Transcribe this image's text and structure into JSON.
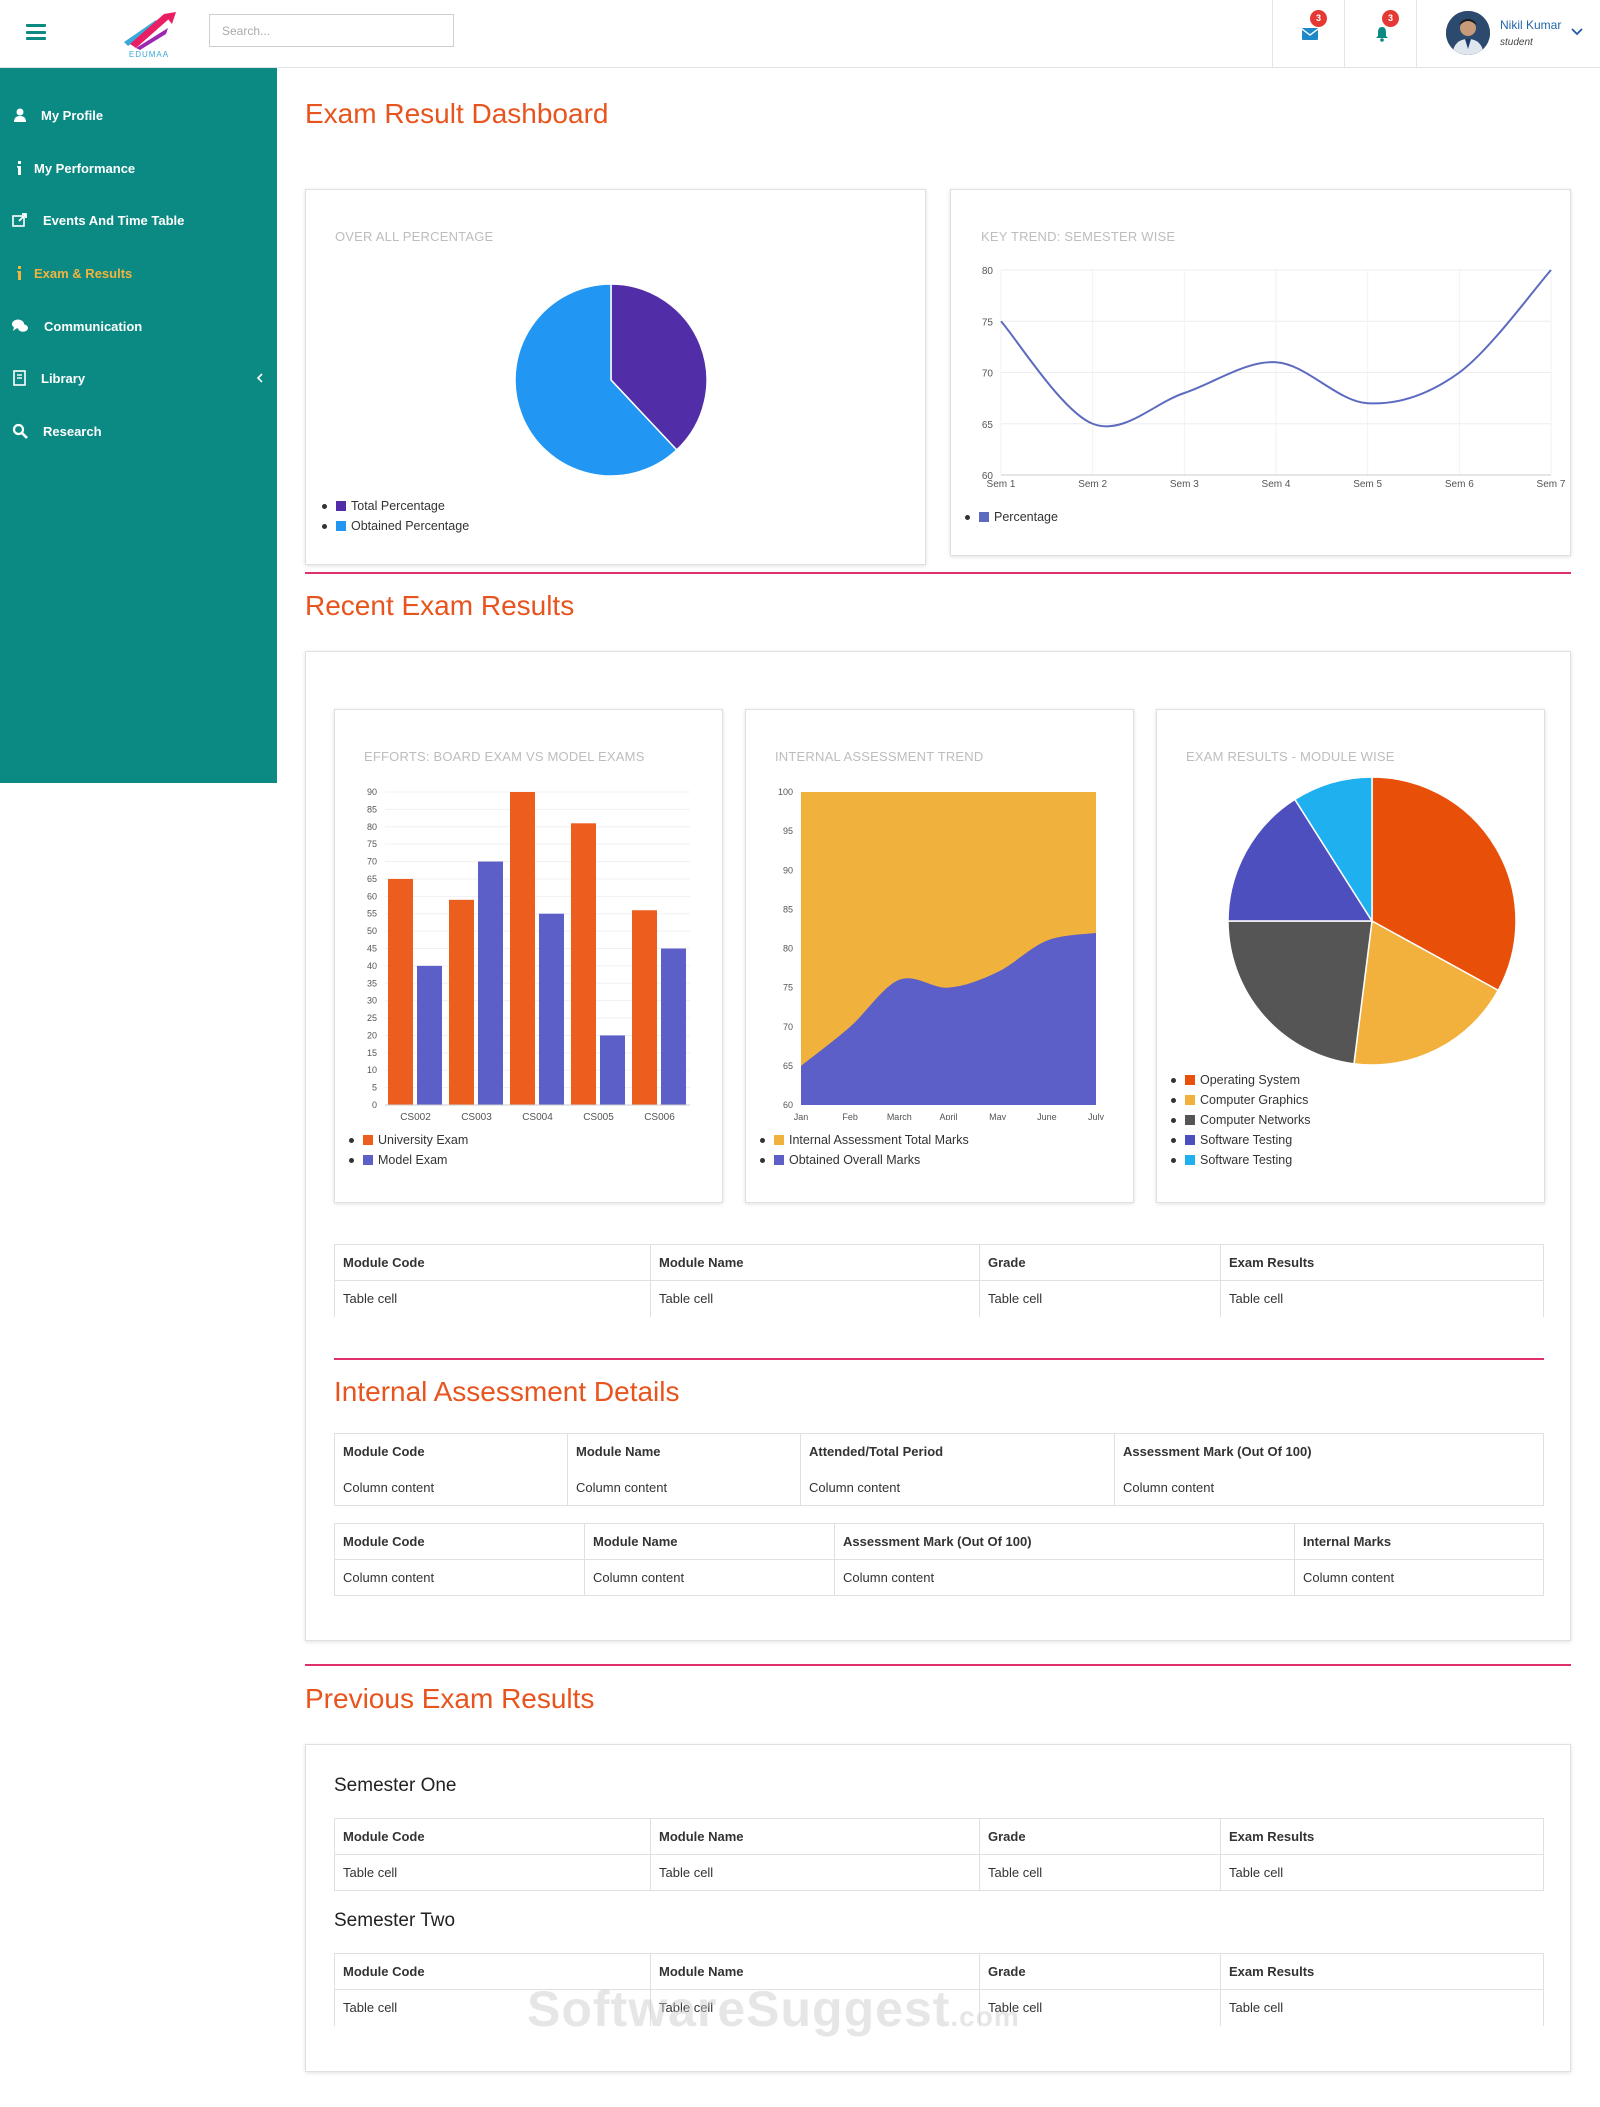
{
  "header": {
    "search_placeholder": "Search...",
    "logo_text": "EDUMAA",
    "mail_badge": "3",
    "notif_badge": "3",
    "user_name": "Nikil Kumar",
    "user_role": "student"
  },
  "sidebar": {
    "items": [
      {
        "label": "My Profile",
        "icon": "user-icon"
      },
      {
        "label": "My Performance",
        "icon": "info-icon"
      },
      {
        "label": "Events And Time Table",
        "icon": "share-icon"
      },
      {
        "label": "Exam & Results",
        "icon": "info-icon",
        "active": true
      },
      {
        "label": "Communication",
        "icon": "chat-icon"
      },
      {
        "label": "Library",
        "icon": "book-icon"
      },
      {
        "label": "Research",
        "icon": "search-icon"
      }
    ]
  },
  "dashboard": {
    "title": "Exam Result Dashboard",
    "overall_title": "OVER ALL PERCENTAGE",
    "trend_title": "KEY TREND: SEMESTER WISE"
  },
  "recent": {
    "title": "Recent Exam Results",
    "efforts_title": "EFFORTS: BOARD EXAM VS MODEL EXAMS",
    "ia_title": "INTERNAL ASSESSMENT TREND",
    "module_title": "EXAM RESULTS - MODULE WISE",
    "table": {
      "headers": [
        "Module Code",
        "Module Name",
        "Grade",
        "Exam Results"
      ],
      "row": [
        "Table cell",
        "Table cell",
        "Table cell",
        "Table cell"
      ]
    }
  },
  "internal": {
    "title": "Internal Assessment Details",
    "table1": {
      "headers": [
        "Module Code",
        "Module Name",
        "Attended/Total Period",
        "Assessment Mark (Out Of 100)"
      ],
      "row": [
        "Column content",
        "Column content",
        "Column content",
        "Column content"
      ]
    },
    "table2": {
      "headers": [
        "Module Code",
        "Module Name",
        "Assessment Mark (Out Of 100)",
        "Internal Marks"
      ],
      "row": [
        "Column content",
        "Column content",
        "Column content",
        "Column content"
      ]
    }
  },
  "previous": {
    "title": "Previous Exam Results",
    "semester_one": "Semester One",
    "semester_two": "Semester Two",
    "table": {
      "headers": [
        "Module Code",
        "Module Name",
        "Grade",
        "Exam Results"
      ],
      "row": [
        "Table cell",
        "Table cell",
        "Table cell",
        "Table cell"
      ]
    }
  },
  "watermark": {
    "main": "SoftwareSuggest",
    "suffix": ".com"
  },
  "colors": {
    "teal": "#0b8a84",
    "accent": "#e8541e",
    "active_nav": "#f3b33d",
    "rule": "#e0306e"
  },
  "chart_data": [
    {
      "type": "pie",
      "labels": [
        "Total Percentage",
        "Obtained Percentage"
      ],
      "values": [
        38,
        62
      ],
      "colors": [
        "#512da8",
        "#2196f3"
      ]
    },
    {
      "type": "line",
      "x": [
        "Sem 1",
        "Sem 2",
        "Sem 3",
        "Sem 4",
        "Sem 5",
        "Sem 6",
        "Sem 7"
      ],
      "series": [
        {
          "name": "Percentage",
          "values": [
            75,
            65,
            68,
            71,
            67,
            70,
            80
          ],
          "color": "#5c6bc0"
        }
      ],
      "ylim": [
        60,
        80
      ],
      "yticks": [
        60,
        65,
        70,
        75,
        80
      ],
      "grid": true,
      "legend": "bottom-left"
    },
    {
      "type": "bar",
      "categories": [
        "CS002",
        "CS003",
        "CS004",
        "CS005",
        "CS006"
      ],
      "series": [
        {
          "name": "University Exam",
          "values": [
            65,
            59,
            90,
            81,
            56
          ],
          "color": "#eb5e1e"
        },
        {
          "name": "Model Exam",
          "values": [
            40,
            70,
            55,
            20,
            45
          ],
          "color": "#5c5fc8"
        }
      ],
      "ylim": [
        0,
        90
      ],
      "yticks": [
        0,
        5,
        10,
        15,
        20,
        25,
        30,
        35,
        40,
        45,
        50,
        55,
        60,
        65,
        70,
        75,
        80,
        85,
        90
      ],
      "grid": true,
      "legend": "bottom-left"
    },
    {
      "type": "area",
      "x": [
        "Jan",
        "Feb",
        "March",
        "April",
        "May",
        "June",
        "July"
      ],
      "series": [
        {
          "name": "Internal Assessment Total Marks",
          "values": [
            100,
            100,
            100,
            100,
            100,
            100,
            100
          ],
          "color": "#f0b23c"
        },
        {
          "name": "Obtained Overall Marks",
          "values": [
            65,
            70,
            76,
            75,
            77,
            81,
            82
          ],
          "color": "#5c5fc8"
        }
      ],
      "ylim": [
        60,
        100
      ],
      "yticks": [
        60,
        65,
        70,
        75,
        80,
        85,
        90,
        95,
        100
      ],
      "legend": "bottom-left"
    },
    {
      "type": "pie",
      "labels": [
        "Operating System",
        "Computer Graphics",
        "Computer Networks",
        "Software Testing",
        "Software Testing"
      ],
      "values": [
        33,
        19,
        23,
        16,
        9
      ],
      "colors": [
        "#e8500a",
        "#f1b13c",
        "#555555",
        "#4e4fbf",
        "#1fb0f0"
      ]
    }
  ]
}
